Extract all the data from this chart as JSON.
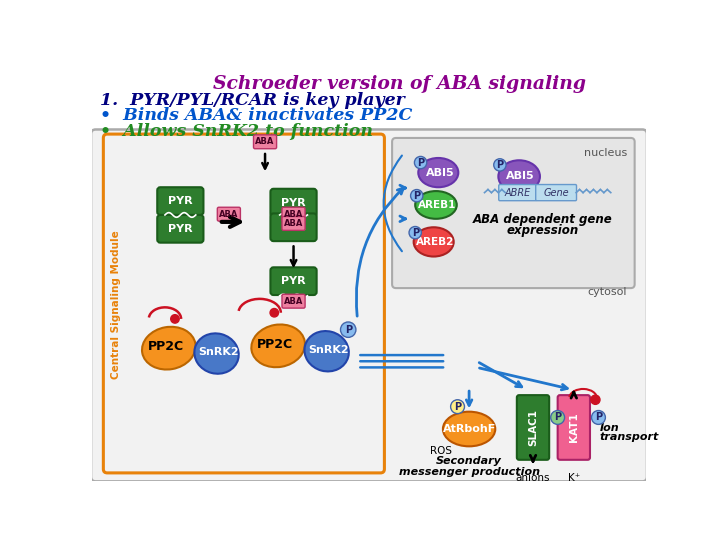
{
  "title": "Schroeder version of ABA signaling",
  "title_color": "#8B008B",
  "title_fontsize": 13.5,
  "line1": "1.  PYR/PYL/RCAR is key player",
  "line1_color": "#000080",
  "line1_fontsize": 12.5,
  "bullet1_text": "•  Binds ABA& inactivates PP2C",
  "bullet1_color": "#0055CC",
  "bullet1_fontsize": 12.5,
  "bullet2_text": "•  Allows SnRK2 to function",
  "bullet2_color": "#228B22",
  "bullet2_fontsize": 12.5,
  "bg_color": "#FFFFFF",
  "outer_box_color": "#AAAAAA",
  "inner_box_color": "#E8820A",
  "green_dark": "#2E7D2E",
  "orange_color": "#F5921E",
  "blue_color": "#4878C8",
  "pink_color": "#F06090",
  "purple_color": "#8855BB",
  "red_dot_color": "#CC1122",
  "arrow_blue": "#2277CC",
  "aba_pink": "#EE80A0",
  "p_badge_color": "#88BBEE"
}
